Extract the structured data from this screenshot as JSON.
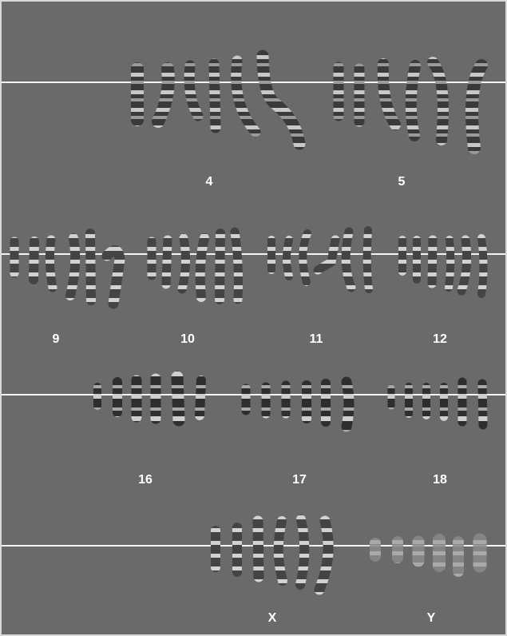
{
  "figure": {
    "rows": [
      {
        "labels": [
          "4",
          "5"
        ]
      },
      {
        "labels": [
          "9",
          "10",
          "11",
          "12"
        ]
      },
      {
        "labels": [
          "16",
          "17",
          "18"
        ]
      },
      {
        "labels": [
          "X",
          "Y"
        ]
      }
    ]
  },
  "colors": {
    "background": "#6a6a6a",
    "centromere_line": "#f4f4f4",
    "label": "#ffffff",
    "chromosome_dark": "#2a2a2a",
    "chromosome_light": "#bdbdbd"
  }
}
